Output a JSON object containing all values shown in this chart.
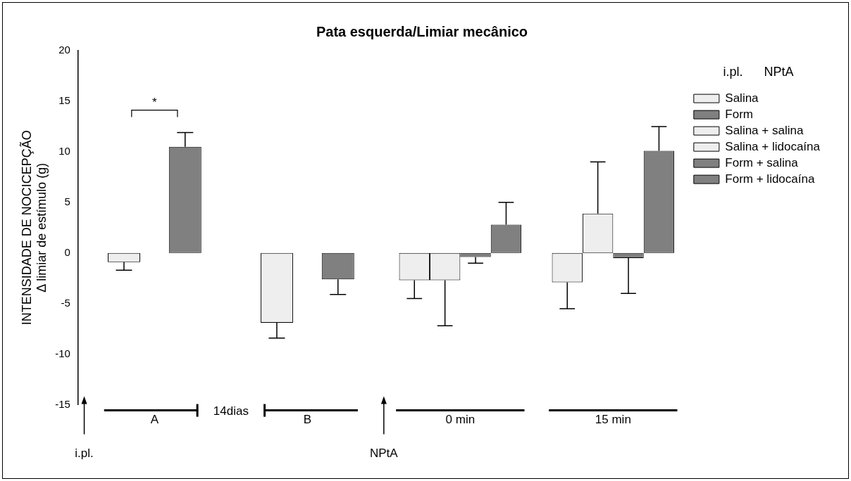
{
  "chart_data": {
    "type": "bar",
    "title": "Pata esquerda/Limiar mecânico",
    "ylabel": "INTENSIDADE DE NOCICEPÇÃO\nΔ limiar de estímulo (g)",
    "legend_title": "i.pl.      NPtA",
    "categories": [
      "A",
      "B",
      "0 min",
      "15 min"
    ],
    "series": [
      {
        "name": "Salina",
        "color": "#eeeeee",
        "values": [
          -0.9,
          -6.9,
          null,
          null
        ],
        "errors": [
          [
            -1.7,
            -0.9
          ],
          [
            -8.4,
            -6.9
          ],
          null,
          null
        ]
      },
      {
        "name": "Form",
        "color": "#808080",
        "values": [
          10.5,
          -2.6,
          null,
          null
        ],
        "errors": [
          [
            10.5,
            11.9
          ],
          [
            -4.1,
            -2.6
          ],
          null,
          null
        ]
      },
      {
        "name": "Salina + salina",
        "color": "#eeeeee",
        "values": [
          null,
          null,
          -2.7,
          -2.9
        ],
        "errors": [
          null,
          null,
          [
            -4.5,
            -2.7
          ],
          [
            -5.5,
            -2.9
          ]
        ]
      },
      {
        "name": "Salina + lidocaína",
        "color": "#eeeeee",
        "values": [
          null,
          null,
          -2.7,
          3.9
        ],
        "errors": [
          null,
          null,
          [
            -7.2,
            -2.7
          ],
          [
            3.9,
            9.0
          ]
        ]
      },
      {
        "name": "Form + salina",
        "color": "#808080",
        "values": [
          null,
          null,
          -0.4,
          -0.5
        ],
        "errors": [
          null,
          null,
          [
            -1.0,
            -0.4
          ],
          [
            -4.0,
            -0.5
          ]
        ]
      },
      {
        "name": "Form + lidocaína",
        "color": "#808080",
        "values": [
          null,
          null,
          2.8,
          10.1
        ],
        "errors": [
          null,
          null,
          [
            2.8,
            5.0
          ],
          [
            10.1,
            12.5
          ]
        ]
      }
    ],
    "ylim": [
      -15,
      20
    ],
    "yticks": [
      -15,
      -10,
      -5,
      0,
      5,
      10,
      15,
      20
    ],
    "grid": false,
    "legend": "right",
    "annotations": [
      "*",
      "14dias",
      "i.pl.",
      "NPtA"
    ]
  }
}
